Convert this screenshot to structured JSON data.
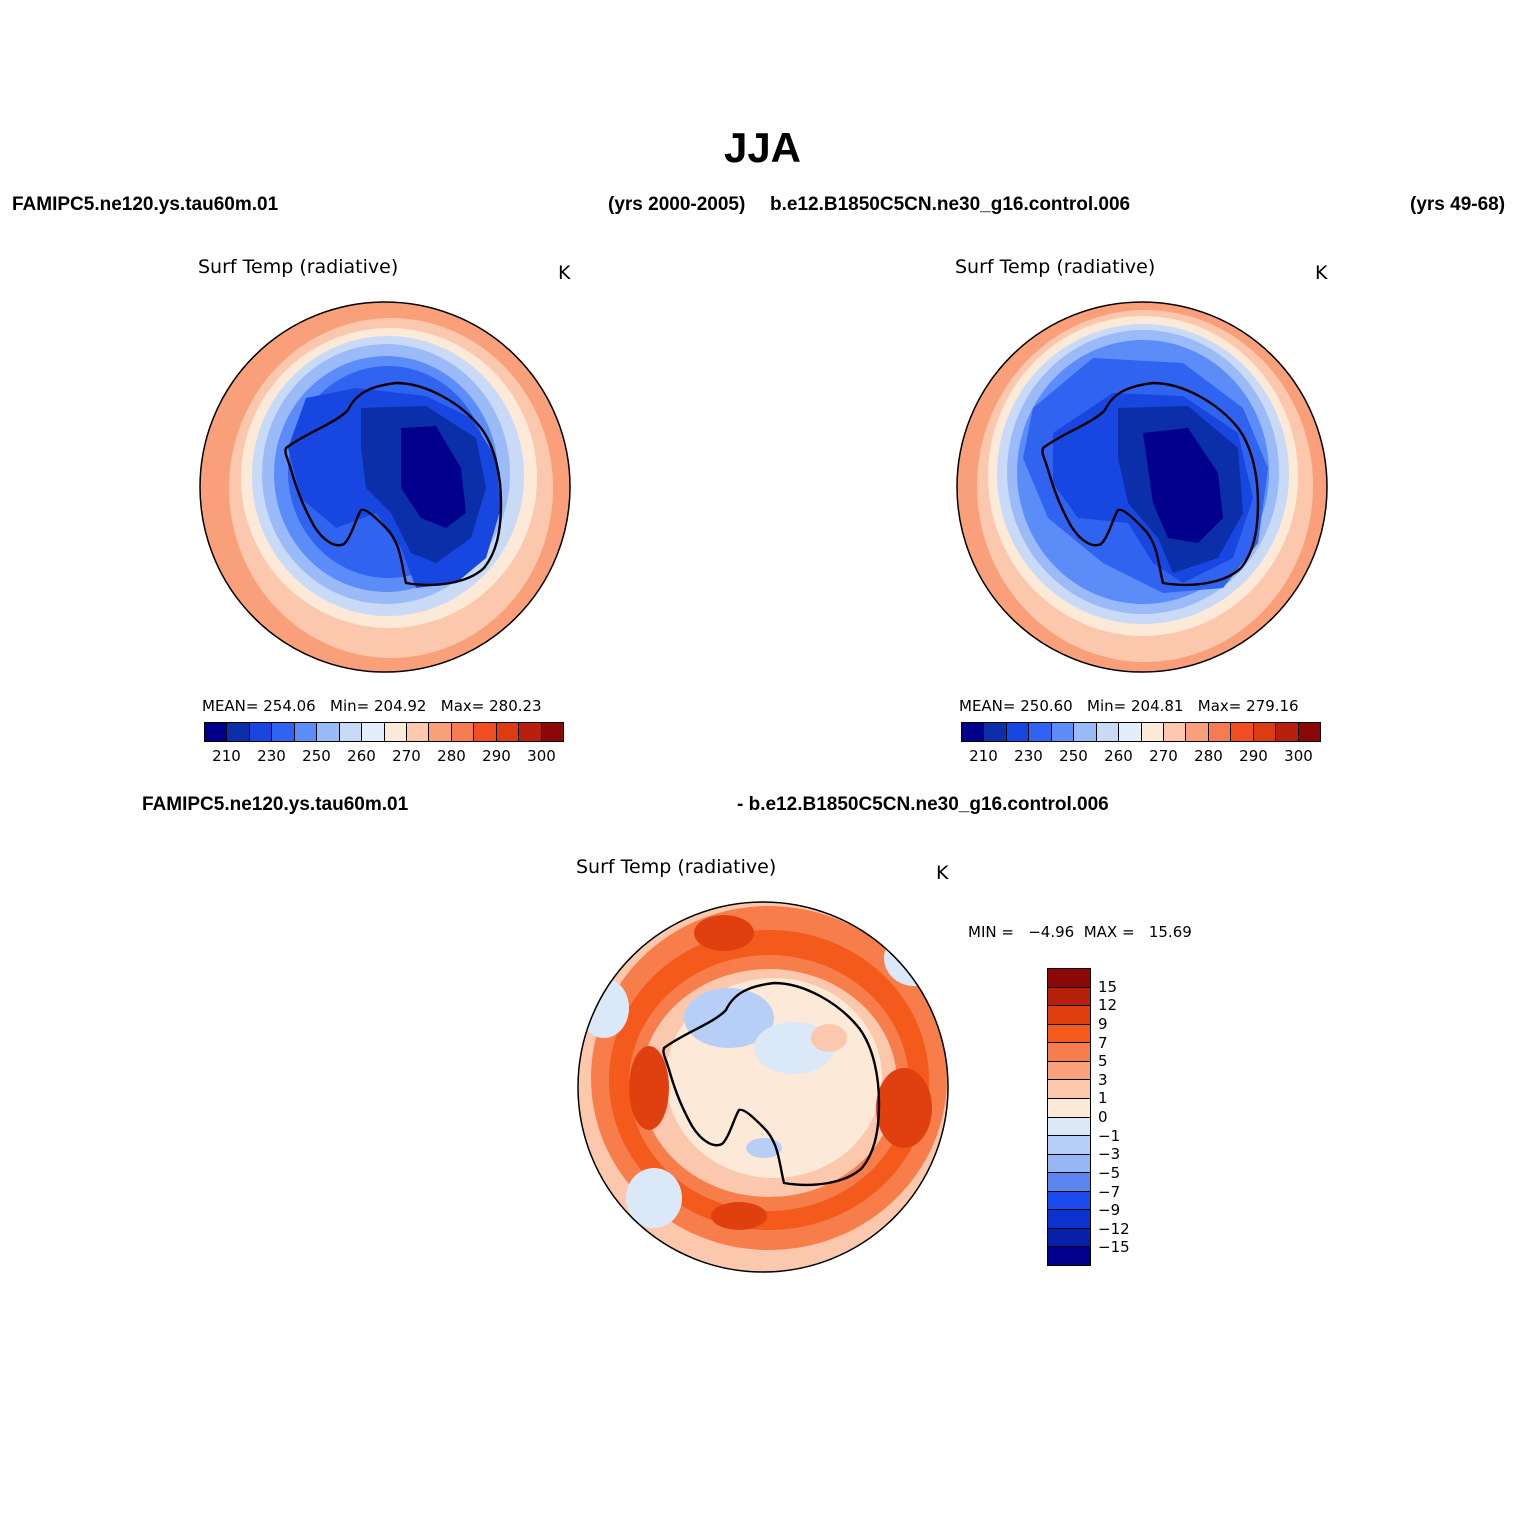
{
  "title": "JJA",
  "header": {
    "case1": "FAMIPC5.ne120.ys.tau60m.01",
    "years1": "(yrs 2000-2005)",
    "case2": "b.e12.B1850C5CN.ne30_g16.control.006",
    "years2": "(yrs 49-68)",
    "diff_case1": "FAMIPC5.ne120.ys.tau60m.01",
    "diff_case2": "- b.e12.B1850C5CN.ne30_g16.control.006"
  },
  "panels": [
    {
      "title": "Surf Temp (radiative)",
      "units": "K",
      "stats": "MEAN= 254.06   Min= 204.92   Max= 280.23",
      "mean": 254.06,
      "min": 204.92,
      "max": 280.23
    },
    {
      "title": "Surf Temp (radiative)",
      "units": "K",
      "stats": "MEAN= 250.60   Min= 204.81   Max= 279.16",
      "mean": 250.6,
      "min": 204.81,
      "max": 279.16
    },
    {
      "title": "Surf Temp (radiative)",
      "units": "K",
      "stats": "MIN =   −4.96  MAX =   15.69",
      "min": -4.96,
      "max": 15.69
    }
  ],
  "abs_colorbar": {
    "colors": [
      "#00008c",
      "#0a2fa8",
      "#1846e0",
      "#2f63f0",
      "#5c8cf8",
      "#9bbaf8",
      "#c8daf6",
      "#e4eefa",
      "#fde9d8",
      "#fbc8ad",
      "#f9a07a",
      "#f67a52",
      "#f24e22",
      "#dc3c10",
      "#b81f0c",
      "#8c0808"
    ],
    "labels": [
      "210",
      "230",
      "250",
      "260",
      "270",
      "280",
      "290",
      "300"
    ]
  },
  "diff_colorbar": {
    "colors": [
      "#8c0808",
      "#b81f0c",
      "#e0400f",
      "#f45a1c",
      "#f77d4a",
      "#f9a27c",
      "#fcc8ab",
      "#fde9d8",
      "#dbe8f7",
      "#b7cff6",
      "#97b6f4",
      "#5a86f0",
      "#1c4cee",
      "#0b32cc",
      "#0620a8",
      "#00008c"
    ],
    "labels": [
      "15",
      "12",
      "9",
      "7",
      "5",
      "3",
      "1",
      "0",
      "−1",
      "−3",
      "−5",
      "−7",
      "−9",
      "−12",
      "−15"
    ]
  }
}
